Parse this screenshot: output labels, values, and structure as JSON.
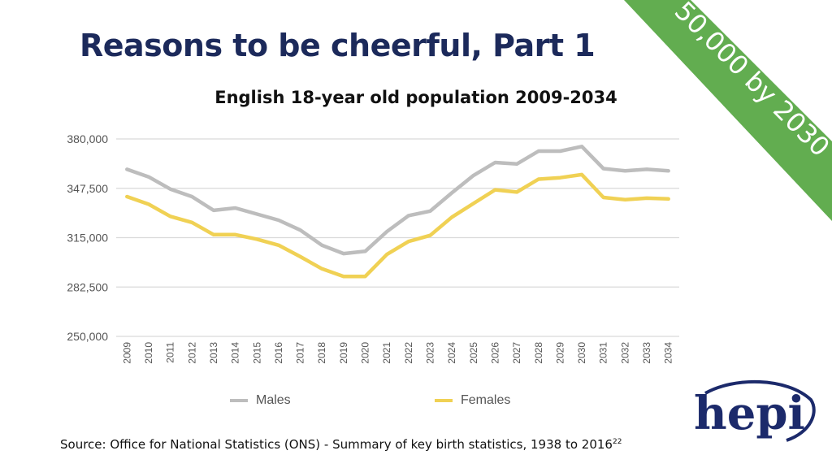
{
  "slide": {
    "title": "Reasons to be cheerful, Part 1",
    "banner": "50,000 by 2030",
    "source": "Source: Office for National Statistics (ONS) - Summary of key birth statistics, 1938 to 2016",
    "source_ref": "22",
    "logo_text": "hepi"
  },
  "colors": {
    "title": "#1c2a5b",
    "banner": "#62ad50",
    "males": "#bdbdbd",
    "females": "#f0d154",
    "grid": "#d9d9d9",
    "logo": "#1c2a6b"
  },
  "chart_data": {
    "type": "line",
    "title": "English 18-year old population 2009-2034",
    "xlabel": "",
    "ylabel": "",
    "x": [
      "2009",
      "2010",
      "2011",
      "2012",
      "2013",
      "2014",
      "2015",
      "2016",
      "2017",
      "2018",
      "2019",
      "2020",
      "2021",
      "2022",
      "2023",
      "2024",
      "2025",
      "2026",
      "2027",
      "2028",
      "2029",
      "2030",
      "2031",
      "2032",
      "2033",
      "2034"
    ],
    "y_ticks": [
      "250,000",
      "282,500",
      "315,000",
      "347,500",
      "380,000"
    ],
    "ylim": [
      250000,
      380000
    ],
    "grid": true,
    "legend_position": "bottom",
    "series": [
      {
        "name": "Males",
        "values": [
          360000,
          355000,
          347000,
          342000,
          333000,
          334500,
          330500,
          326500,
          320000,
          310000,
          304500,
          306000,
          319000,
          329500,
          332500,
          344500,
          356000,
          364500,
          363500,
          372000,
          372000,
          375000,
          360500,
          359000,
          360000,
          359000
        ]
      },
      {
        "name": "Females",
        "values": [
          342000,
          337000,
          329000,
          325000,
          317000,
          317000,
          314000,
          310000,
          302500,
          294500,
          289500,
          289500,
          304000,
          312500,
          316500,
          328500,
          337500,
          346500,
          345000,
          353500,
          354500,
          356500,
          341500,
          340000,
          341000,
          340500
        ]
      }
    ]
  }
}
